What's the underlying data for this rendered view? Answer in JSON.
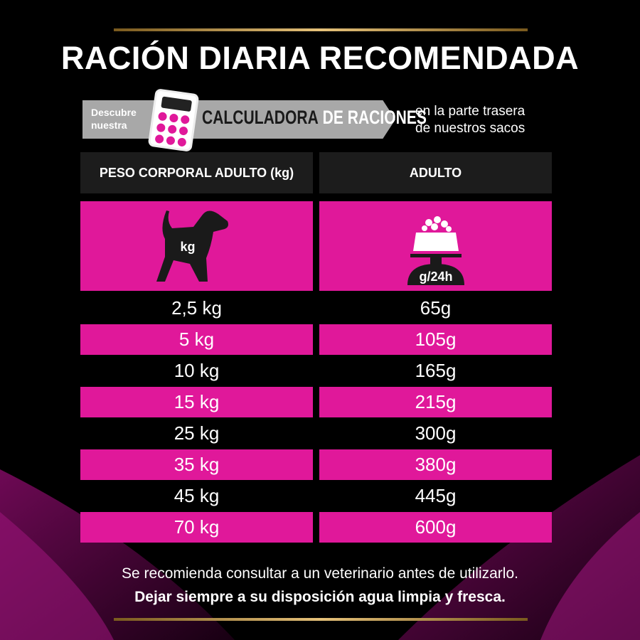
{
  "title": "RACIÓN DIARIA RECOMENDADA",
  "banner": {
    "small": [
      "Descubre",
      "nuestra"
    ],
    "big_dark": "CALCULADORA",
    "big_light": "DE RACIONES",
    "right": [
      "en la parte trasera",
      "de nuestros sacos"
    ]
  },
  "table": {
    "headers": [
      "PESO CORPORAL ADULTO (kg)",
      "ADULTO"
    ],
    "icon_labels": {
      "weight": "kg",
      "portion": "g/24h"
    },
    "rows": [
      [
        "2,5 kg",
        "65g"
      ],
      [
        "5 kg",
        "105g"
      ],
      [
        "10 kg",
        "165g"
      ],
      [
        "15 kg",
        "215g"
      ],
      [
        "25 kg",
        "300g"
      ],
      [
        "35 kg",
        "380g"
      ],
      [
        "45 kg",
        "445g"
      ],
      [
        "70 kg",
        "600g"
      ]
    ]
  },
  "footer": {
    "line1": "Se recomienda consultar a un veterinario antes de utilizarlo.",
    "line2": "Dejar siempre a su disposición agua limpia y fresca."
  },
  "colors": {
    "accent": "#e0189a",
    "header_bg": "#1c1c1c",
    "gold": "#c9a45a"
  }
}
